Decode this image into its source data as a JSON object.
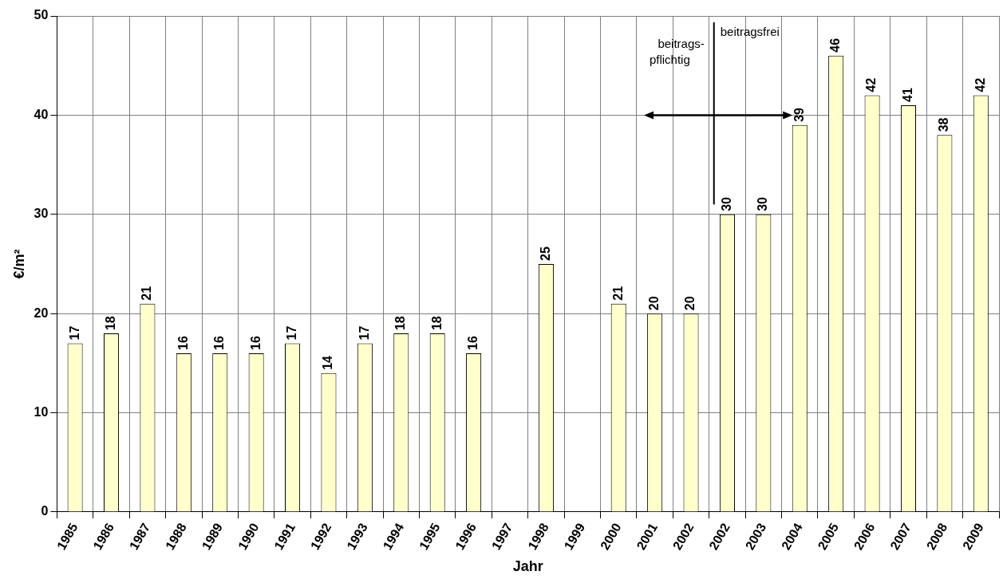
{
  "chart_data": {
    "type": "bar",
    "xlabel": "Jahr",
    "ylabel": "€/m²",
    "categories": [
      "1985",
      "1986",
      "1987",
      "1988",
      "1989",
      "1990",
      "1991",
      "1992",
      "1993",
      "1994",
      "1995",
      "1996",
      "1997",
      "1998",
      "1999",
      "2000",
      "2001",
      "2002",
      "2002",
      "2003",
      "2004",
      "2005",
      "2006",
      "2007",
      "2008",
      "2009"
    ],
    "values": [
      17,
      18,
      21,
      16,
      16,
      16,
      17,
      14,
      17,
      18,
      18,
      16,
      null,
      25,
      null,
      21,
      20,
      20,
      30,
      30,
      39,
      46,
      42,
      41,
      38,
      42
    ],
    "color": "#ffffcc",
    "ylim": [
      0,
      50
    ],
    "yticks": [
      0,
      10,
      20,
      30,
      40,
      50
    ],
    "grid": true,
    "data_labels": true,
    "legend": false,
    "annotations": [
      "beitrags-\npflichtig",
      "beitragsfrei"
    ]
  }
}
